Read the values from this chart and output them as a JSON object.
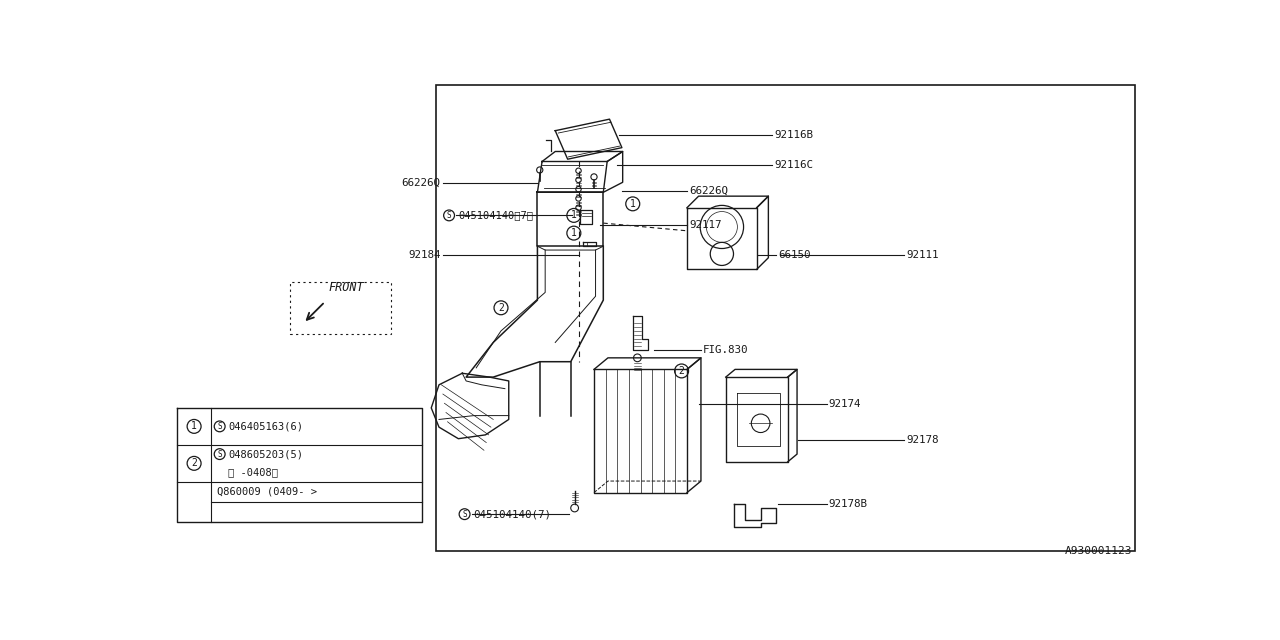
{
  "bg_color": "#ffffff",
  "line_color": "#1a1a1a",
  "footer_text": "A930001123",
  "diagram_border": [
    0.278,
    0.038,
    0.705,
    0.945
  ],
  "label_fontsize": 7.8,
  "label_font": "monospace"
}
